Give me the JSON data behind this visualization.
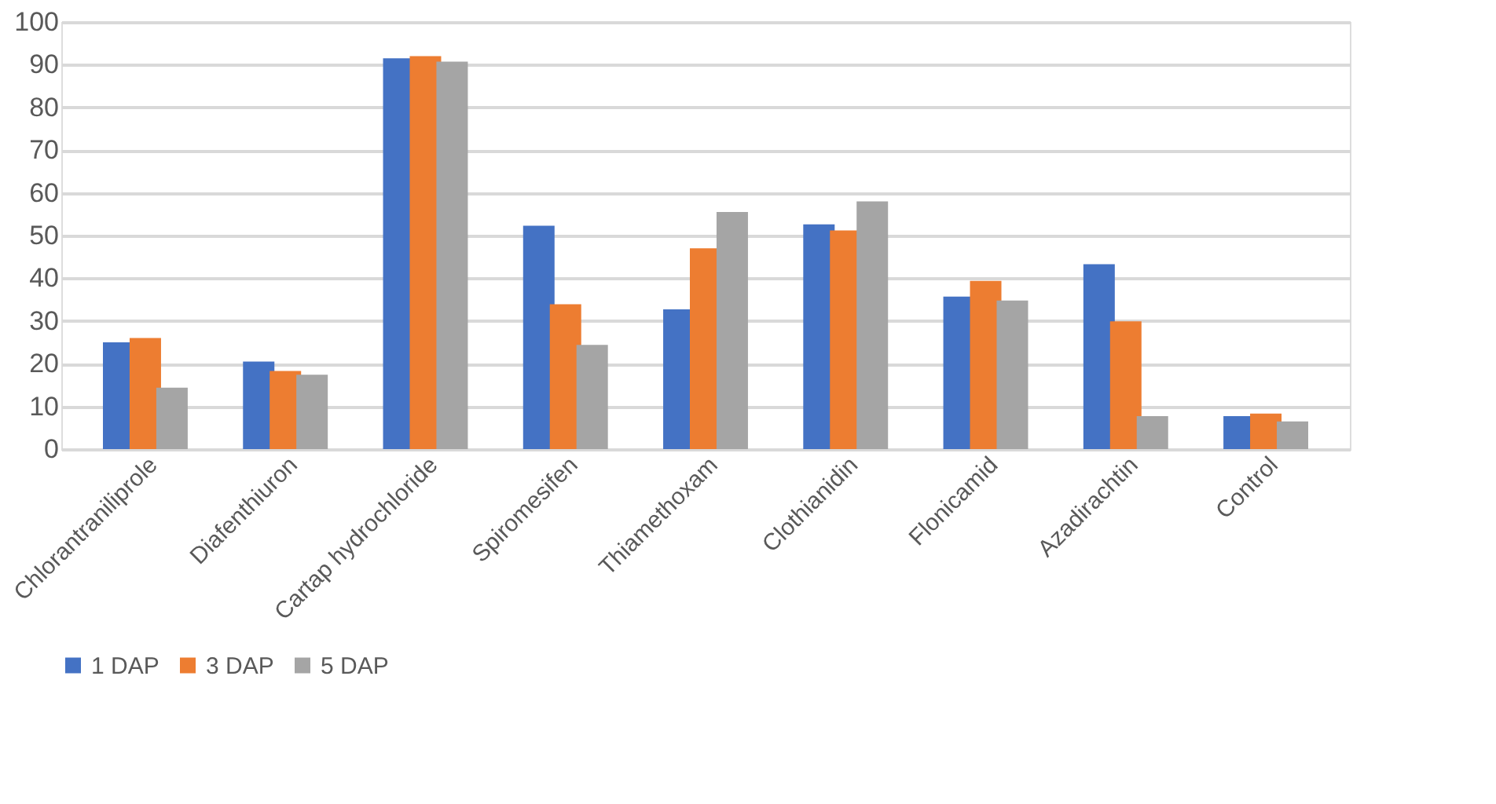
{
  "chart_data": {
    "type": "bar",
    "categories": [
      "Chlorantraniliprole",
      "Diafenthiuron",
      "Cartap hydrochloride",
      "Spiromesifen",
      "Thiamethoxam",
      "Clothianidin",
      "Flonicamid",
      "Azadirachtin",
      "Control"
    ],
    "series": [
      {
        "name": "1 DAP",
        "color": "#4472c4",
        "values": [
          25,
          20.5,
          91.5,
          52.3,
          32.7,
          52.6,
          35.7,
          43.3,
          7.7
        ]
      },
      {
        "name": "3 DAP",
        "color": "#ed7d31",
        "values": [
          26,
          18.3,
          92,
          33.9,
          47,
          51.2,
          39.4,
          29.9,
          8.3
        ]
      },
      {
        "name": "5 DAP",
        "color": "#a5a5a5",
        "values": [
          14.4,
          17.4,
          90.7,
          24.4,
          55.5,
          58,
          34.8,
          7.7,
          6.5
        ]
      }
    ],
    "ylim": [
      0,
      100
    ],
    "yticks": [
      0,
      10,
      20,
      30,
      40,
      50,
      60,
      70,
      80,
      90,
      100
    ],
    "grid": "y",
    "legend": "bottom"
  }
}
